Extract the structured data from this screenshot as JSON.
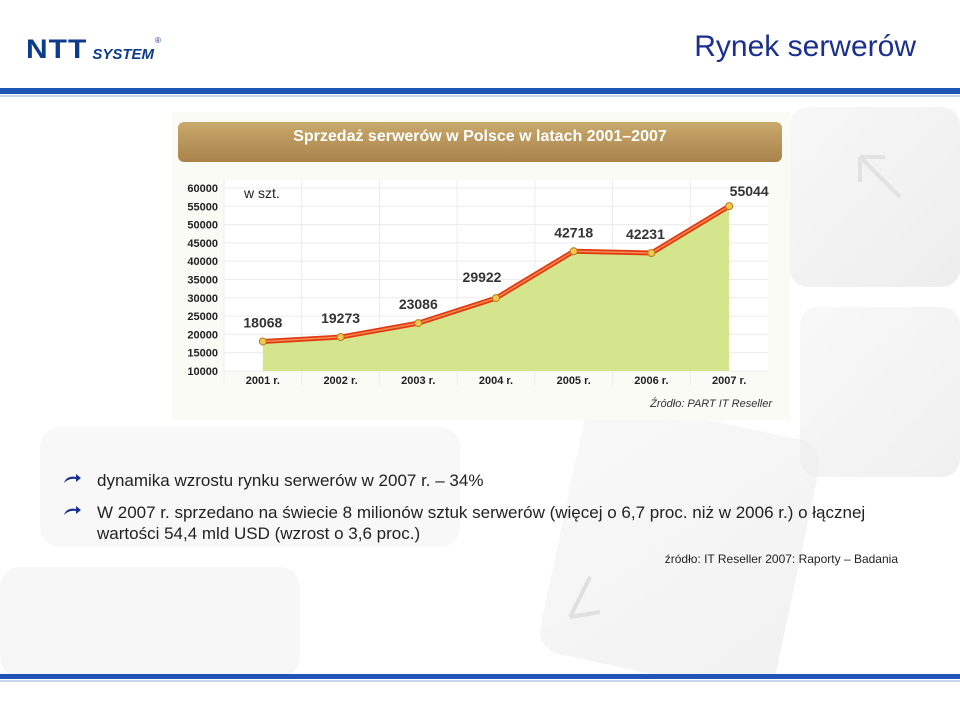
{
  "header": {
    "logo_main": "NTT",
    "logo_sub": "SYSTEM",
    "logo_reg": "®",
    "title": "Rynek serwerów"
  },
  "chart_data": {
    "type": "line",
    "title": "Sprzedaż serwerów w Polsce w latach 2001–2007",
    "ylabel": "w szt.",
    "categories": [
      "2001 r.",
      "2002 r.",
      "2003 r.",
      "2004 r.",
      "2005 r.",
      "2006 r.",
      "2007 r."
    ],
    "series": [
      {
        "values": [
          18068,
          19273,
          23086,
          29922,
          42718,
          42231,
          55044
        ]
      }
    ],
    "y_ticks": [
      10000,
      15000,
      20000,
      25000,
      30000,
      35000,
      40000,
      45000,
      50000,
      55000,
      60000
    ],
    "ylim": [
      10000,
      60000
    ],
    "area_fill": "#d5e58e",
    "line_color": "#e23a10",
    "marker_color": "#f2c94c",
    "source": "Źródło: PART IT Reseller"
  },
  "bullets": [
    "dynamika wzrostu rynku serwerów w 2007 r. – 34%",
    "W 2007 r. sprzedano na świecie 8 milionów sztuk serwerów (więcej o 6,7 proc. niż w 2006 r.) o łącznej wartości 54,4 mld USD (wzrost o 3,6 proc.)"
  ],
  "citation": "źródło: IT Reseller 2007: Raporty – Badania",
  "colors": {
    "accent": "#1f56b5",
    "title": "#1a2f8f"
  }
}
